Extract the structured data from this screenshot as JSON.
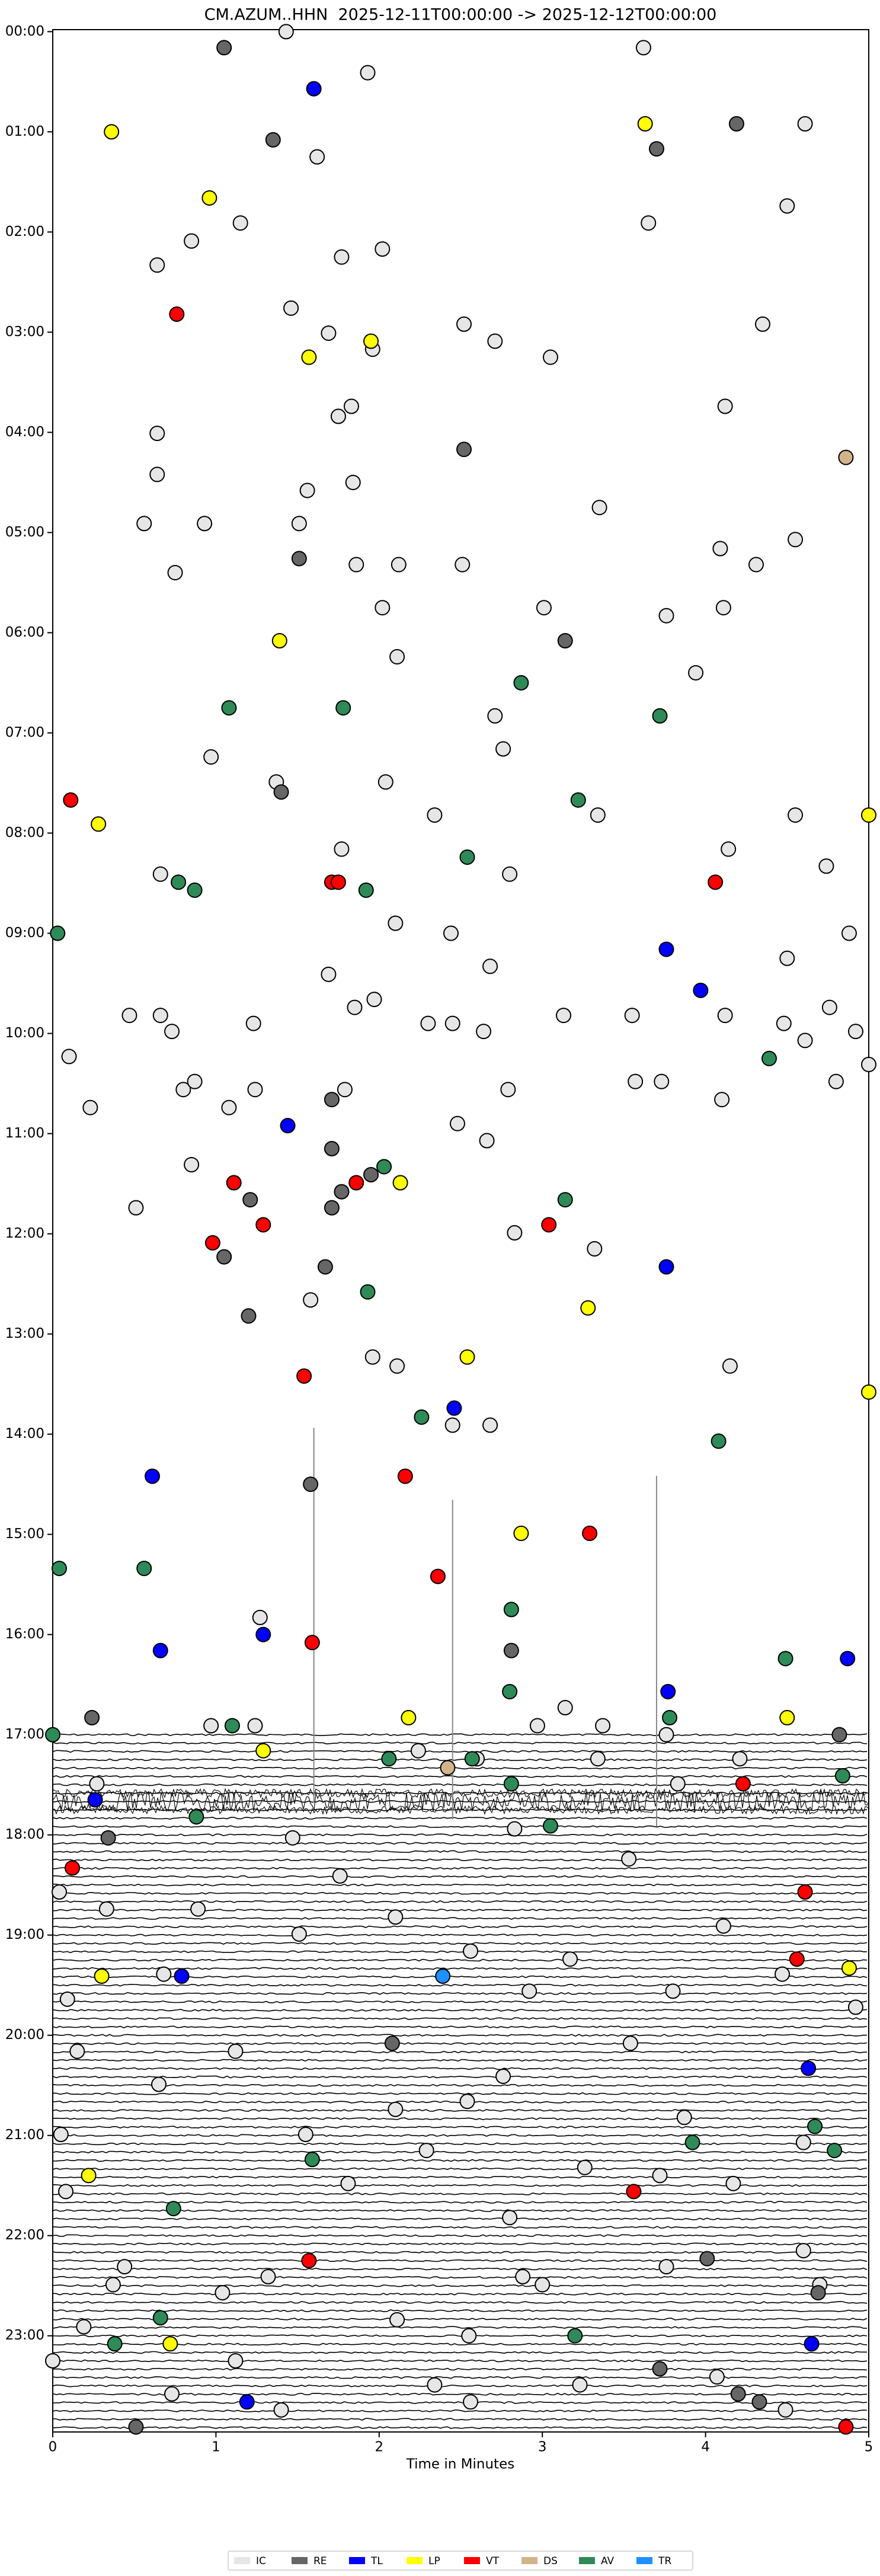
{
  "chart_data": {
    "type": "scatter",
    "title": "CM.AZUM..HHN  2025-12-11T00:00:00 -> 2025-12-12T00:00:00",
    "x_label": "Time in Minutes",
    "xlim": [
      0,
      5
    ],
    "xticks": [
      0,
      1,
      2,
      3,
      4,
      5
    ],
    "ylim": [
      -0.02,
      23.96
    ],
    "y_inverted": true,
    "yticks": [
      {
        "value": 0,
        "label": "00:00"
      },
      {
        "value": 1,
        "label": "01:00"
      },
      {
        "value": 2,
        "label": "02:00"
      },
      {
        "value": 3,
        "label": "03:00"
      },
      {
        "value": 4,
        "label": "04:00"
      },
      {
        "value": 5,
        "label": "05:00"
      },
      {
        "value": 6,
        "label": "06:00"
      },
      {
        "value": 7,
        "label": "07:00"
      },
      {
        "value": 8,
        "label": "08:00"
      },
      {
        "value": 9,
        "label": "09:00"
      },
      {
        "value": 10,
        "label": "10:00"
      },
      {
        "value": 11,
        "label": "11:00"
      },
      {
        "value": 12,
        "label": "12:00"
      },
      {
        "value": 13,
        "label": "13:00"
      },
      {
        "value": 14,
        "label": "14:00"
      },
      {
        "value": 15,
        "label": "15:00"
      },
      {
        "value": 16,
        "label": "16:00"
      },
      {
        "value": 17,
        "label": "17:00"
      },
      {
        "value": 18,
        "label": "18:00"
      },
      {
        "value": 19,
        "label": "19:00"
      },
      {
        "value": 20,
        "label": "20:00"
      },
      {
        "value": 21,
        "label": "21:00"
      },
      {
        "value": 22,
        "label": "22:00"
      },
      {
        "value": 23,
        "label": "23:00"
      }
    ],
    "legend": "bottom",
    "series": [
      {
        "name": "IC",
        "color": "#e6e6e6",
        "x": [
          1.43,
          3.62,
          1.93,
          4.61,
          1.62,
          4.5,
          1.15,
          3.65,
          0.85,
          1.77,
          2.02,
          0.64,
          1.46,
          2.52,
          4.35,
          1.69,
          1.96,
          2.71,
          3.05,
          4.12,
          1.83,
          1.75,
          0.64,
          0.64,
          1.56,
          1.84,
          0.56,
          0.93,
          1.51,
          3.35,
          0.75,
          1.86,
          2.12,
          2.51,
          4.09,
          4.31,
          4.55,
          2.02,
          3.01,
          4.11,
          3.76,
          2.11,
          3.94,
          2.71,
          2.76,
          0.97,
          2.04,
          1.37,
          3.34,
          4.55,
          2.34,
          1.77,
          4.14,
          4.74,
          2.8,
          0.66,
          2.1,
          2.44,
          4.88,
          1.69,
          4.5,
          2.68,
          1.97,
          1.85,
          4.76,
          1.23,
          0.47,
          0.66,
          0.73,
          2.3,
          2.45,
          2.64,
          3.13,
          3.55,
          4.12,
          4.48,
          4.61,
          4.92,
          5.0,
          0.1,
          1.79,
          1.24,
          0.8,
          0.87,
          2.79,
          3.57,
          3.73,
          4.8,
          0.23,
          1.08,
          4.1,
          2.48,
          2.66,
          0.85,
          0.51,
          2.83,
          3.32,
          1.58,
          1.96,
          2.11,
          4.15,
          2.45,
          2.68,
          1.27,
          0.97,
          1.24,
          3.14,
          2.97,
          3.37,
          3.76,
          0.27,
          3.83,
          2.24,
          2.6,
          3.34,
          4.21,
          1.47,
          1.76,
          2.83,
          3.53,
          0.33,
          2.1,
          0.89,
          0.04,
          1.51,
          4.11,
          0.68,
          2.56,
          3.17,
          4.47,
          0.09,
          2.92,
          3.8,
          4.92,
          0.15,
          1.12,
          3.54,
          2.76,
          0.65,
          2.1,
          2.54,
          3.87,
          0.05,
          1.55,
          2.29,
          3.26,
          4.17,
          3.72,
          4.6,
          0.08,
          1.81,
          2.8,
          0.44,
          1.32,
          3.0,
          4.6,
          0.37,
          2.88,
          1.04,
          3.76,
          2.11,
          2.55,
          0.19,
          4.7,
          3.23,
          4.07,
          0.73,
          2.34,
          1.12,
          0.0,
          1.4,
          2.56,
          4.49
        ],
        "y": [
          0.0,
          0.16,
          0.41,
          0.92,
          1.25,
          1.74,
          1.91,
          1.91,
          2.09,
          2.25,
          2.17,
          2.33,
          2.76,
          2.92,
          2.92,
          3.01,
          3.17,
          3.09,
          3.25,
          3.74,
          3.74,
          3.84,
          4.01,
          4.42,
          4.58,
          4.5,
          4.91,
          4.91,
          4.91,
          4.75,
          5.4,
          5.32,
          5.32,
          5.32,
          5.16,
          5.32,
          5.07,
          5.75,
          5.75,
          5.75,
          5.83,
          6.24,
          6.4,
          6.83,
          7.16,
          7.24,
          7.49,
          7.49,
          7.82,
          7.82,
          7.82,
          8.16,
          8.16,
          8.33,
          8.41,
          8.41,
          8.9,
          9.0,
          9.0,
          9.41,
          9.25,
          9.33,
          9.66,
          9.74,
          9.74,
          9.9,
          9.82,
          9.82,
          9.98,
          9.9,
          9.9,
          9.98,
          9.82,
          9.82,
          9.82,
          9.9,
          10.07,
          9.98,
          10.31,
          10.23,
          10.56,
          10.56,
          10.56,
          10.48,
          10.56,
          10.48,
          10.48,
          10.48,
          10.74,
          10.74,
          10.66,
          10.9,
          11.07,
          11.31,
          11.74,
          11.99,
          12.15,
          12.66,
          13.23,
          13.32,
          13.32,
          13.91,
          13.91,
          15.83,
          16.91,
          16.91,
          16.73,
          16.91,
          16.91,
          17.0,
          17.49,
          17.49,
          17.16,
          17.24,
          17.24,
          17.24,
          18.03,
          18.41,
          17.94,
          18.24,
          18.74,
          18.82,
          18.74,
          18.57,
          18.99,
          18.91,
          19.39,
          19.16,
          19.24,
          19.39,
          19.64,
          19.56,
          19.56,
          19.72,
          20.16,
          20.16,
          20.08,
          20.41,
          20.49,
          20.74,
          20.66,
          20.82,
          20.99,
          20.99,
          21.15,
          21.32,
          21.48,
          21.4,
          21.07,
          21.56,
          21.48,
          21.82,
          22.31,
          22.41,
          22.49,
          22.15,
          22.49,
          22.41,
          22.57,
          22.31,
          22.84,
          23.0,
          22.91,
          22.49,
          23.49,
          23.41,
          23.58,
          23.49,
          23.25,
          23.25,
          23.74,
          23.66,
          23.74
        ]
      },
      {
        "name": "RE",
        "color": "#666666",
        "x": [
          1.05,
          4.19,
          1.35,
          3.7,
          2.52,
          1.51,
          3.14,
          1.4,
          1.71,
          1.71,
          1.77,
          1.95,
          1.21,
          1.71,
          1.05,
          1.67,
          1.2,
          1.58,
          2.81,
          0.24,
          4.82,
          0.34,
          4.69,
          4.01,
          2.08,
          3.72,
          4.2,
          4.33,
          0.51
        ],
        "y": [
          0.16,
          0.92,
          1.08,
          1.17,
          4.17,
          5.26,
          6.08,
          7.59,
          10.66,
          11.15,
          11.58,
          11.41,
          11.66,
          11.74,
          12.23,
          12.33,
          12.82,
          14.5,
          16.16,
          16.83,
          17.0,
          18.03,
          22.57,
          22.23,
          20.08,
          23.33,
          23.58,
          23.66,
          23.91
        ]
      },
      {
        "name": "TL",
        "color": "#0000ff",
        "x": [
          1.6,
          1.44,
          3.76,
          2.46,
          0.61,
          1.29,
          0.66,
          3.76,
          3.97,
          3.77,
          4.87,
          0.26,
          0.79,
          4.63,
          1.19,
          4.65
        ],
        "y": [
          0.57,
          10.92,
          12.33,
          13.74,
          14.42,
          16.0,
          16.16,
          9.16,
          9.57,
          16.57,
          16.24,
          17.65,
          19.41,
          20.33,
          23.66,
          23.08
        ]
      },
      {
        "name": "LP",
        "color": "#ffff00",
        "x": [
          0.36,
          0.96,
          3.63,
          1.95,
          1.57,
          1.39,
          0.28,
          5.0,
          2.13,
          3.28,
          2.54,
          5.0,
          2.87,
          2.18,
          1.29,
          4.5,
          0.3,
          4.88,
          0.22,
          0.72
        ],
        "y": [
          1.0,
          1.66,
          0.92,
          3.09,
          3.25,
          6.08,
          7.91,
          7.82,
          11.49,
          12.74,
          13.23,
          13.58,
          14.99,
          16.83,
          17.16,
          16.83,
          19.41,
          19.33,
          21.4,
          23.08
        ]
      },
      {
        "name": "VT",
        "color": "#ff0000",
        "x": [
          0.76,
          0.11,
          1.71,
          1.75,
          4.06,
          1.11,
          1.86,
          0.98,
          1.29,
          3.04,
          1.54,
          2.16,
          2.36,
          3.29,
          1.59,
          4.23,
          0.12,
          4.61,
          4.56,
          3.56,
          1.57,
          4.86
        ],
        "y": [
          2.82,
          7.67,
          8.49,
          8.49,
          8.49,
          11.49,
          11.49,
          12.09,
          11.91,
          11.91,
          13.42,
          14.42,
          15.42,
          14.99,
          16.08,
          17.49,
          18.33,
          18.57,
          19.24,
          21.56,
          22.25,
          23.91
        ]
      },
      {
        "name": "DS",
        "color": "#d2b48c",
        "x": [
          4.86,
          2.42
        ],
        "y": [
          4.25,
          17.33
        ]
      },
      {
        "name": "AV",
        "color": "#2e8b57",
        "x": [
          2.87,
          1.08,
          1.78,
          3.72,
          3.22,
          2.54,
          0.77,
          0.87,
          1.92,
          0.03,
          4.39,
          2.03,
          3.14,
          1.93,
          2.26,
          4.08,
          0.04,
          0.56,
          2.81,
          4.49,
          2.8,
          3.78,
          1.1,
          0.0,
          2.06,
          2.57,
          2.81,
          4.84,
          0.88,
          3.05,
          1.59,
          0.74,
          3.92,
          4.79,
          4.67,
          0.66,
          0.38,
          3.2
        ],
        "y": [
          6.5,
          6.75,
          6.75,
          6.83,
          7.67,
          8.24,
          8.49,
          8.57,
          8.57,
          9.0,
          10.25,
          11.33,
          11.66,
          12.58,
          13.83,
          14.07,
          15.34,
          15.34,
          15.75,
          16.24,
          16.57,
          16.83,
          16.91,
          17.0,
          17.24,
          17.24,
          17.49,
          17.41,
          17.82,
          17.91,
          21.24,
          21.73,
          21.07,
          21.15,
          20.91,
          22.82,
          23.08,
          23.0
        ]
      },
      {
        "name": "TR",
        "color": "#1e90ff",
        "x": [
          2.39
        ],
        "y": [
          19.41
        ]
      }
    ]
  }
}
